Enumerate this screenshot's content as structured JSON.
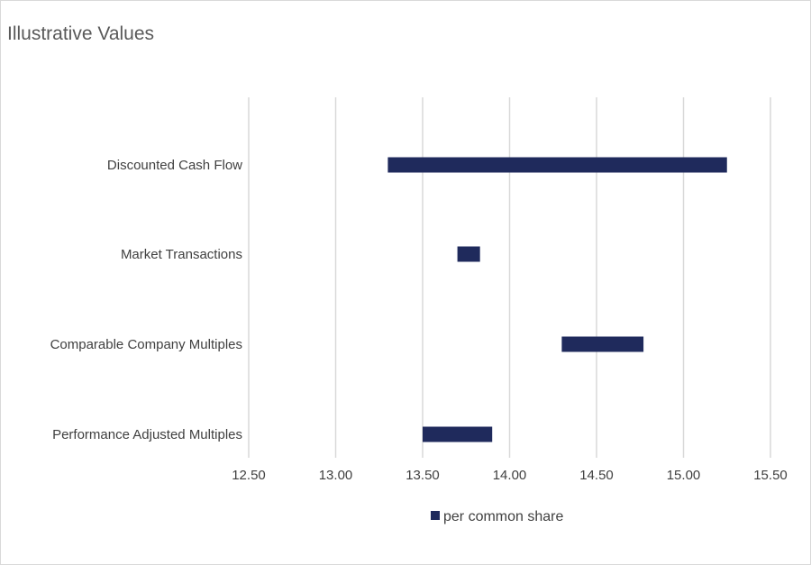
{
  "chart_data": {
    "type": "bar",
    "orientation": "horizontal-range",
    "title": "Illustrative Values",
    "xlabel": "",
    "ylabel": "",
    "categories": [
      "Discounted Cash Flow",
      "Market Transactions",
      "Comparable Company Multiples",
      "Performance Adjusted Multiples"
    ],
    "series": [
      {
        "name": "per common share",
        "ranges": [
          [
            13.3,
            15.25
          ],
          [
            13.7,
            13.83
          ],
          [
            14.3,
            14.77
          ],
          [
            13.5,
            13.9
          ]
        ]
      }
    ],
    "xlim": [
      12.5,
      15.5
    ],
    "xticks": [
      "12.50",
      "13.00",
      "13.50",
      "14.00",
      "14.50",
      "15.00",
      "15.50"
    ],
    "grid": true,
    "legend_position": "bottom",
    "bar_color": "#1f2a5c",
    "grid_color": "#d9d9d9"
  }
}
